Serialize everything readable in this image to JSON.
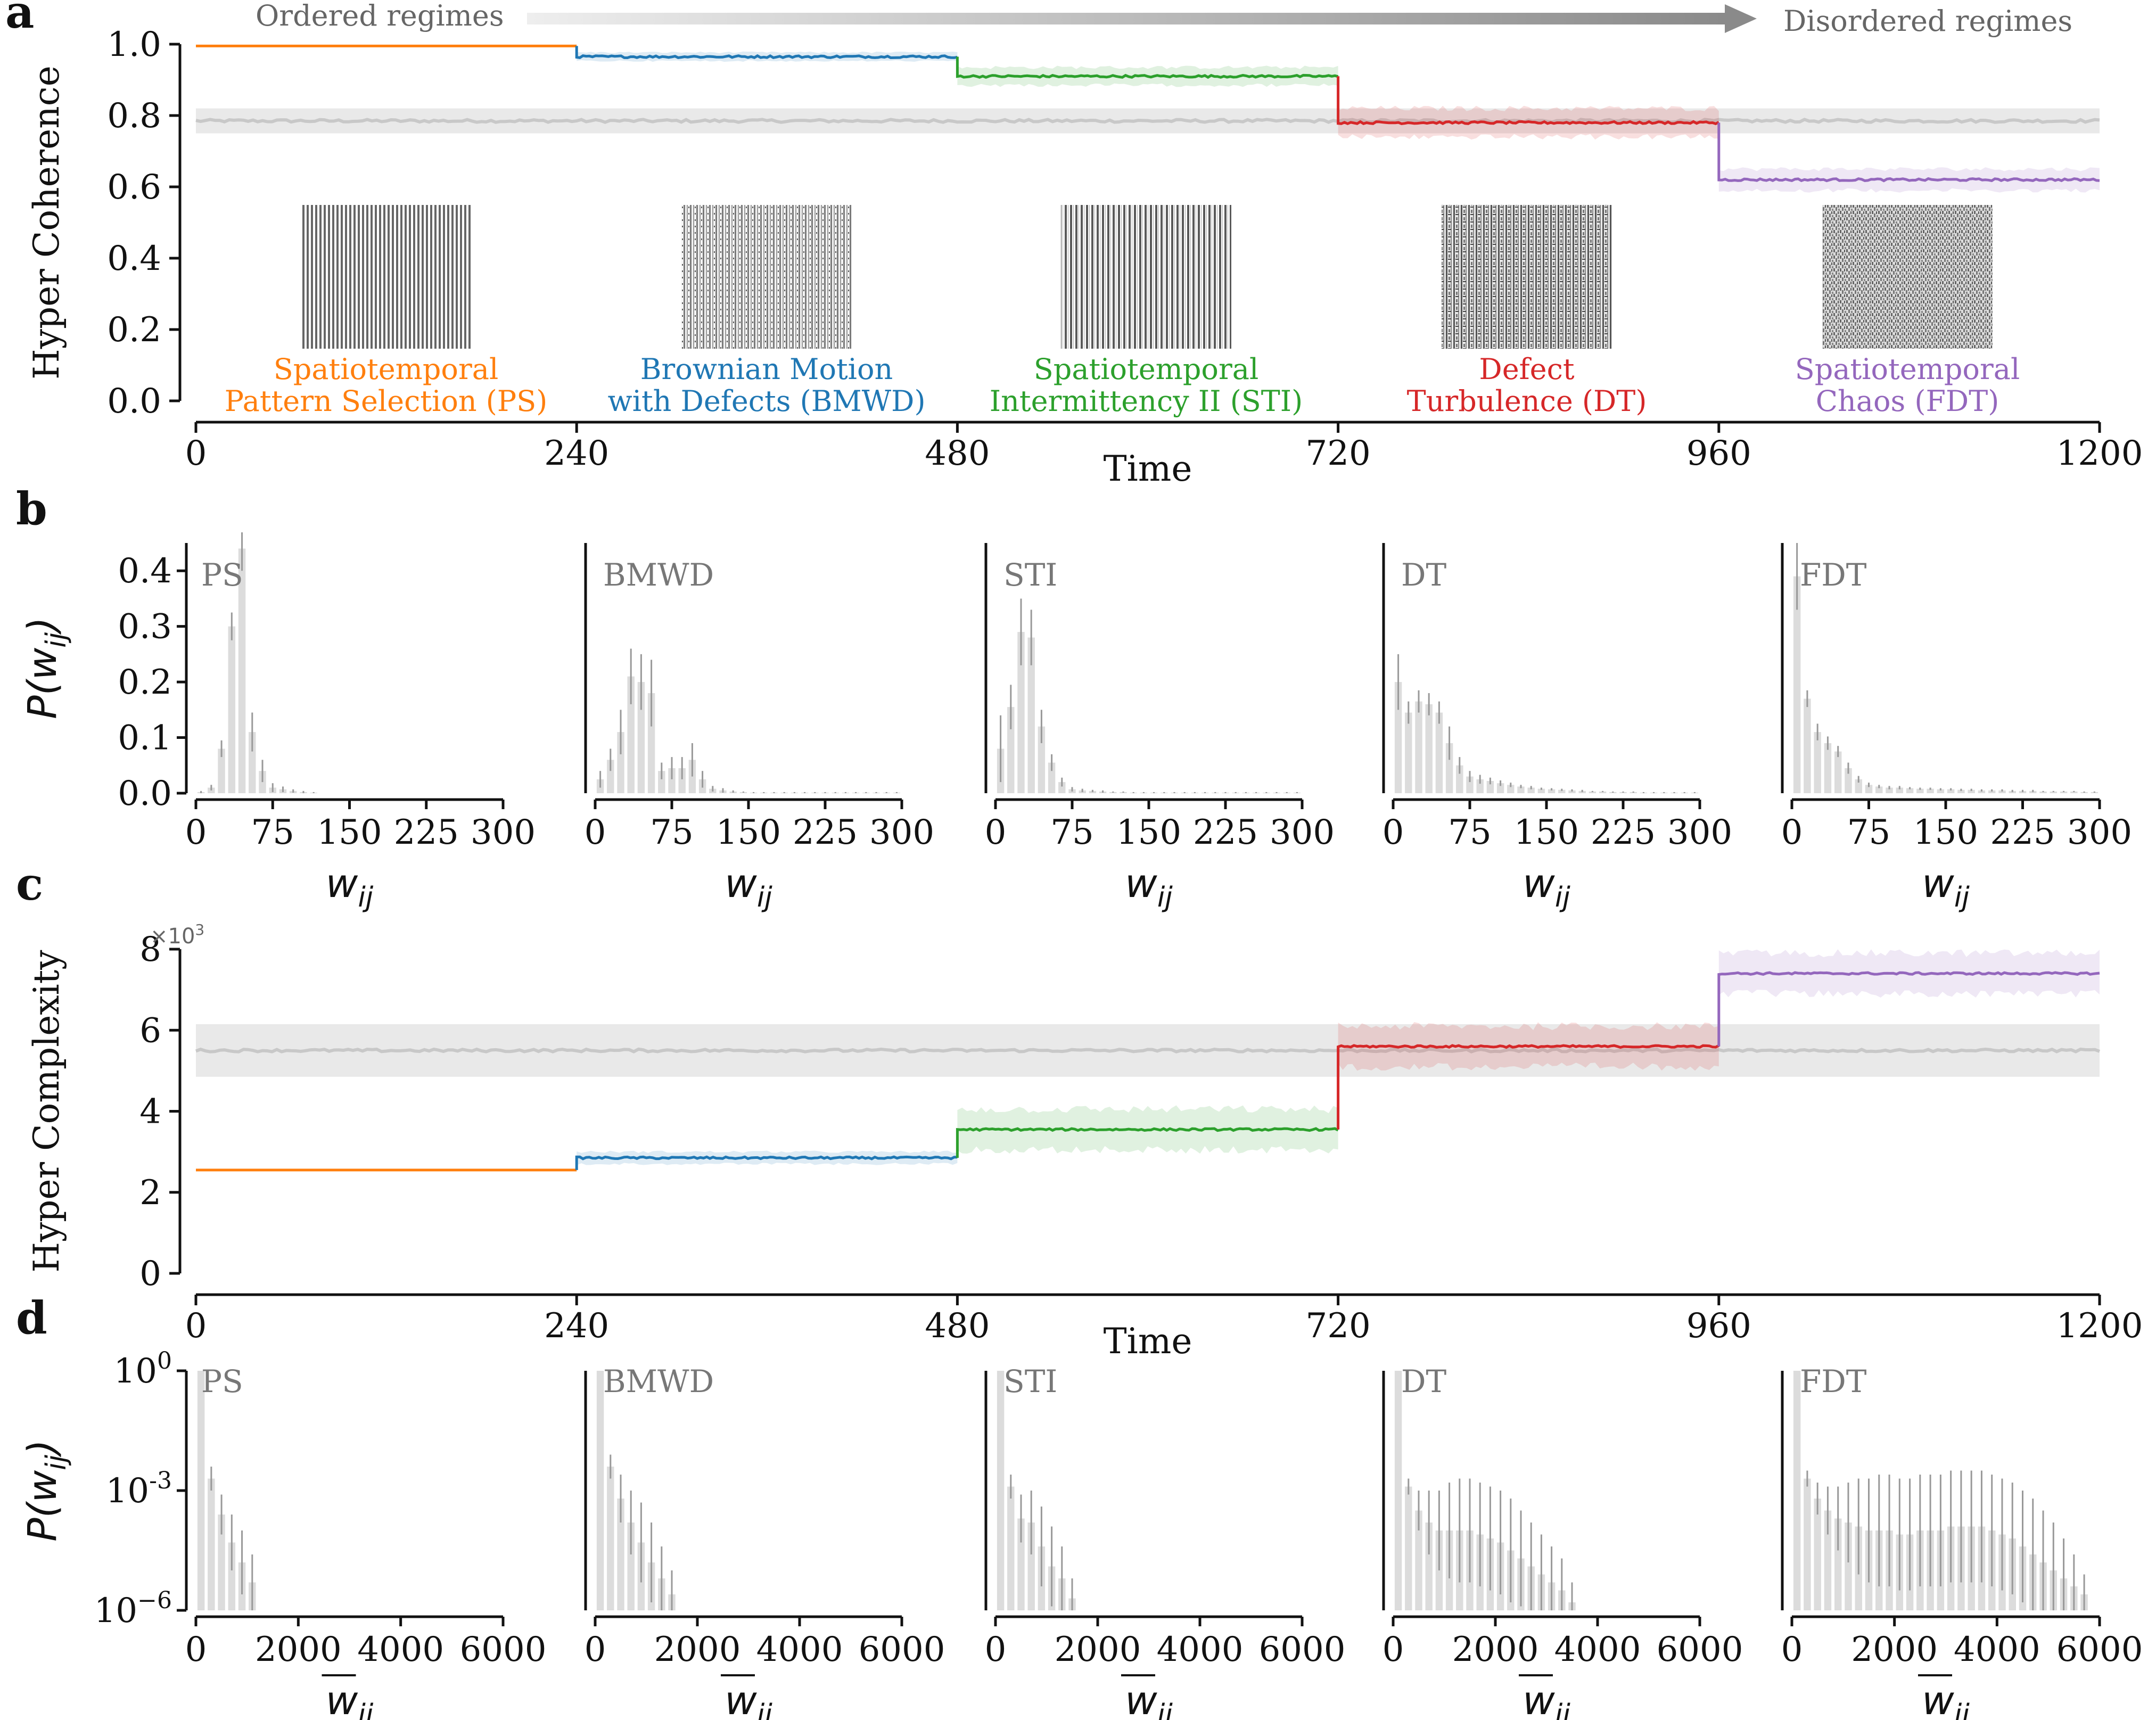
{
  "colors": {
    "PS": "#ff7f0e",
    "BMWD": "#1f77b4",
    "STI": "#2ca02c",
    "DT": "#d62728",
    "FDT": "#9467bd",
    "null": "#c8c8c8",
    "bar": "#dcdcdc",
    "err": "#999999"
  },
  "panel_letters": [
    "a",
    "b",
    "c",
    "d"
  ],
  "arrow": {
    "left": "Ordered regimes",
    "right": "Disordered regimes"
  },
  "regimes": [
    {
      "key": "PS",
      "line1": "Spatiotemporal",
      "line2": "Pattern Selection (PS)"
    },
    {
      "key": "BMWD",
      "line1": "Brownian Motion",
      "line2": "with Defects (BMWD)"
    },
    {
      "key": "STI",
      "line1": "Spatiotemporal",
      "line2": "Intermittency II (STI)"
    },
    {
      "key": "DT",
      "line1": "Defect",
      "line2": "Turbulence (DT)"
    },
    {
      "key": "FDT",
      "line1": "Spatiotemporal",
      "line2": "Chaos (FDT)"
    }
  ],
  "chart_data": [
    {
      "panel": "a",
      "type": "line",
      "xlabel": "Time",
      "ylabel": "Hyper Coherence",
      "xlim": [
        0,
        1200
      ],
      "ylim": [
        0,
        1
      ],
      "xticks": [
        "0",
        "240",
        "480",
        "720",
        "960",
        "1200"
      ],
      "yticks": [
        "0.0",
        "0.2",
        "0.4",
        "0.6",
        "0.8",
        "1.0"
      ],
      "null_model": {
        "mean": 0.785,
        "band": 0.035
      },
      "series": [
        {
          "name": "PS",
          "x": [
            0,
            240
          ],
          "mean": 0.995,
          "band": 0.0
        },
        {
          "name": "BMWD",
          "x": [
            240,
            480
          ],
          "mean": 0.965,
          "band": 0.012
        },
        {
          "name": "STI",
          "x": [
            480,
            720
          ],
          "mean": 0.91,
          "band": 0.025
        },
        {
          "name": "DT",
          "x": [
            720,
            960
          ],
          "mean": 0.78,
          "band": 0.04
        },
        {
          "name": "FDT",
          "x": [
            960,
            1200
          ],
          "mean": 0.62,
          "band": 0.03
        }
      ]
    },
    {
      "panel": "b",
      "type": "bar",
      "xlabel": "w",
      "xlabel_sub": "ij",
      "ylabel": "P(w",
      "ylabel_sub": "ij",
      "ylabel_end": ")",
      "xlim": [
        0,
        300
      ],
      "ylim": [
        0,
        0.45
      ],
      "xticks": [
        "0",
        "75",
        "150",
        "225",
        "300"
      ],
      "yticks": [
        "0.0",
        "0.1",
        "0.2",
        "0.3",
        "0.4"
      ],
      "bin_width": 10,
      "bin_starts": [
        0,
        10,
        20,
        30,
        40,
        50,
        60,
        70,
        80,
        90,
        100,
        110,
        120,
        130,
        140,
        150,
        160,
        170,
        180,
        190,
        200,
        210,
        220,
        230,
        240,
        250,
        260,
        270,
        280,
        290
      ],
      "series": [
        {
          "name": "PS",
          "values": [
            0.002,
            0.01,
            0.08,
            0.3,
            0.44,
            0.11,
            0.04,
            0.01,
            0.007,
            0.004,
            0.002,
            0.001,
            0,
            0,
            0,
            0,
            0,
            0,
            0,
            0,
            0,
            0,
            0,
            0,
            0,
            0,
            0,
            0,
            0,
            0
          ],
          "errors": [
            0.002,
            0.005,
            0.015,
            0.025,
            0.04,
            0.035,
            0.02,
            0.008,
            0.005,
            0.003,
            0.002,
            0.001,
            0,
            0,
            0,
            0,
            0,
            0,
            0,
            0,
            0,
            0,
            0,
            0,
            0,
            0,
            0,
            0,
            0,
            0
          ]
        },
        {
          "name": "BMWD",
          "values": [
            0.025,
            0.06,
            0.11,
            0.21,
            0.2,
            0.18,
            0.04,
            0.045,
            0.045,
            0.06,
            0.025,
            0.008,
            0.005,
            0.003,
            0.002,
            0.001,
            0.001,
            0.001,
            0.001,
            0.001,
            0.001,
            0.001,
            0.001,
            0.001,
            0.001,
            0.001,
            0.001,
            0.001,
            0.001,
            0.001
          ],
          "errors": [
            0.015,
            0.02,
            0.04,
            0.05,
            0.05,
            0.06,
            0.015,
            0.02,
            0.02,
            0.03,
            0.015,
            0.005,
            0.004,
            0.002,
            0.001,
            0.001,
            0.001,
            0.001,
            0.001,
            0.001,
            0.001,
            0.001,
            0.001,
            0.001,
            0.001,
            0.001,
            0.001,
            0.001,
            0.001,
            0.001
          ]
        },
        {
          "name": "STI",
          "values": [
            0.08,
            0.155,
            0.29,
            0.28,
            0.12,
            0.055,
            0.02,
            0.007,
            0.005,
            0.004,
            0.003,
            0.002,
            0.002,
            0.001,
            0.001,
            0.001,
            0.001,
            0.001,
            0.001,
            0.001,
            0.001,
            0.001,
            0.001,
            0.001,
            0.001,
            0.001,
            0.001,
            0.001,
            0.001,
            0.001
          ],
          "errors": [
            0.06,
            0.04,
            0.06,
            0.05,
            0.03,
            0.015,
            0.008,
            0.004,
            0.003,
            0.002,
            0.002,
            0.001,
            0.001,
            0.001,
            0.001,
            0.001,
            0.001,
            0.001,
            0.001,
            0.001,
            0.001,
            0.001,
            0.001,
            0.001,
            0.001,
            0.001,
            0.001,
            0.001,
            0.001,
            0.001
          ]
        },
        {
          "name": "DT",
          "values": [
            0.2,
            0.145,
            0.165,
            0.16,
            0.145,
            0.09,
            0.05,
            0.03,
            0.025,
            0.022,
            0.018,
            0.015,
            0.012,
            0.01,
            0.008,
            0.007,
            0.006,
            0.005,
            0.004,
            0.003,
            0.003,
            0.002,
            0.002,
            0.002,
            0.001,
            0.001,
            0.001,
            0.001,
            0.001,
            0.001
          ],
          "errors": [
            0.05,
            0.02,
            0.02,
            0.02,
            0.02,
            0.03,
            0.015,
            0.01,
            0.008,
            0.006,
            0.005,
            0.004,
            0.003,
            0.003,
            0.002,
            0.002,
            0.002,
            0.002,
            0.002,
            0.001,
            0.001,
            0.001,
            0.001,
            0.001,
            0.001,
            0.001,
            0.001,
            0.001,
            0.001,
            0.001
          ]
        },
        {
          "name": "FDT",
          "values": [
            0.39,
            0.17,
            0.11,
            0.09,
            0.075,
            0.045,
            0.025,
            0.015,
            0.012,
            0.01,
            0.01,
            0.009,
            0.008,
            0.008,
            0.007,
            0.007,
            0.006,
            0.006,
            0.005,
            0.005,
            0.005,
            0.004,
            0.004,
            0.004,
            0.003,
            0.003,
            0.003,
            0.003,
            0.002,
            0.002
          ],
          "errors": [
            0.06,
            0.015,
            0.015,
            0.012,
            0.01,
            0.01,
            0.006,
            0.004,
            0.003,
            0.003,
            0.003,
            0.002,
            0.002,
            0.002,
            0.002,
            0.002,
            0.002,
            0.002,
            0.002,
            0.002,
            0.002,
            0.002,
            0.002,
            0.002,
            0.001,
            0.001,
            0.001,
            0.001,
            0.001,
            0.001
          ]
        }
      ]
    },
    {
      "panel": "c",
      "type": "line",
      "xlabel": "Time",
      "ylabel": "Hyper Complexity",
      "scale_label": "×10",
      "scale_exp": "3",
      "xlim": [
        0,
        1200
      ],
      "ylim": [
        0,
        8
      ],
      "xticks": [
        "0",
        "240",
        "480",
        "720",
        "960",
        "1200"
      ],
      "yticks": [
        "0",
        "2",
        "4",
        "6",
        "8"
      ],
      "null_model": {
        "mean": 5.5,
        "band": 0.65
      },
      "series": [
        {
          "name": "PS",
          "x": [
            0,
            240
          ],
          "mean": 2.55,
          "band": 0.0
        },
        {
          "name": "BMWD",
          "x": [
            240,
            480
          ],
          "mean": 2.85,
          "band": 0.15
        },
        {
          "name": "STI",
          "x": [
            480,
            720
          ],
          "mean": 3.55,
          "band": 0.5
        },
        {
          "name": "DT",
          "x": [
            720,
            960
          ],
          "mean": 5.6,
          "band": 0.5
        },
        {
          "name": "FDT",
          "x": [
            960,
            1200
          ],
          "mean": 7.4,
          "band": 0.5
        }
      ]
    },
    {
      "panel": "d",
      "type": "bar",
      "yscale": "log",
      "xlabel": "w",
      "xlabel_sub": "ij",
      "ylabel": "P(w",
      "ylabel_sub": "ij",
      "ylabel_end": ")",
      "xlim": [
        0,
        6000
      ],
      "ylim_log10": [
        -6,
        0
      ],
      "xticks": [
        "0",
        "2000",
        "4000",
        "6000"
      ],
      "yticks": [
        {
          "base": "10",
          "exp": "0"
        },
        {
          "base": "10",
          "exp": "-3"
        },
        {
          "base": "10",
          "exp": "−6"
        }
      ],
      "bin_width": 200,
      "series": [
        {
          "name": "PS",
          "log10_values": [
            0,
            -2.7,
            -3.6,
            -4.3,
            -4.8,
            -5.3
          ],
          "log10_err": [
            0,
            0.3,
            0.5,
            0.7,
            0.8,
            0.7
          ]
        },
        {
          "name": "BMWD",
          "log10_values": [
            0,
            -2.4,
            -3.2,
            -3.8,
            -4.3,
            -4.8,
            -5.2,
            -5.6
          ],
          "log10_err": [
            0,
            0.3,
            0.6,
            0.8,
            1.0,
            1.0,
            0.8,
            0.6
          ]
        },
        {
          "name": "STI",
          "log10_values": [
            0,
            -2.9,
            -3.7,
            -3.8,
            -4.4,
            -4.9,
            -5.2,
            -5.7
          ],
          "log10_err": [
            0,
            0.3,
            0.6,
            0.8,
            1.0,
            1.0,
            0.8,
            0.5
          ]
        },
        {
          "name": "DT",
          "log10_values": [
            0,
            -2.9,
            -3.5,
            -3.8,
            -4.0,
            -4.0,
            -4.0,
            -4.0,
            -4.1,
            -4.2,
            -4.3,
            -4.5,
            -4.7,
            -4.9,
            -5.1,
            -5.3,
            -5.5,
            -5.8
          ],
          "log10_err": [
            0,
            0.2,
            0.5,
            0.8,
            1.0,
            1.2,
            1.3,
            1.3,
            1.3,
            1.3,
            1.3,
            1.3,
            1.2,
            1.1,
            1.0,
            0.9,
            0.8,
            0.5
          ]
        },
        {
          "name": "FDT",
          "log10_values": [
            0,
            -2.7,
            -3.2,
            -3.5,
            -3.7,
            -3.8,
            -3.9,
            -4.0,
            -4.0,
            -4.0,
            -4.1,
            -4.1,
            -4.0,
            -4.0,
            -4.0,
            -3.9,
            -3.9,
            -3.9,
            -3.9,
            -4.0,
            -4.1,
            -4.2,
            -4.4,
            -4.6,
            -4.8,
            -5.0,
            -5.2,
            -5.4,
            -5.6
          ],
          "log10_err": [
            0,
            0.2,
            0.4,
            0.6,
            0.8,
            1.0,
            1.2,
            1.3,
            1.4,
            1.4,
            1.4,
            1.4,
            1.4,
            1.4,
            1.4,
            1.4,
            1.4,
            1.4,
            1.4,
            1.4,
            1.4,
            1.4,
            1.4,
            1.4,
            1.3,
            1.2,
            1.0,
            0.8,
            0.5
          ]
        }
      ]
    }
  ]
}
